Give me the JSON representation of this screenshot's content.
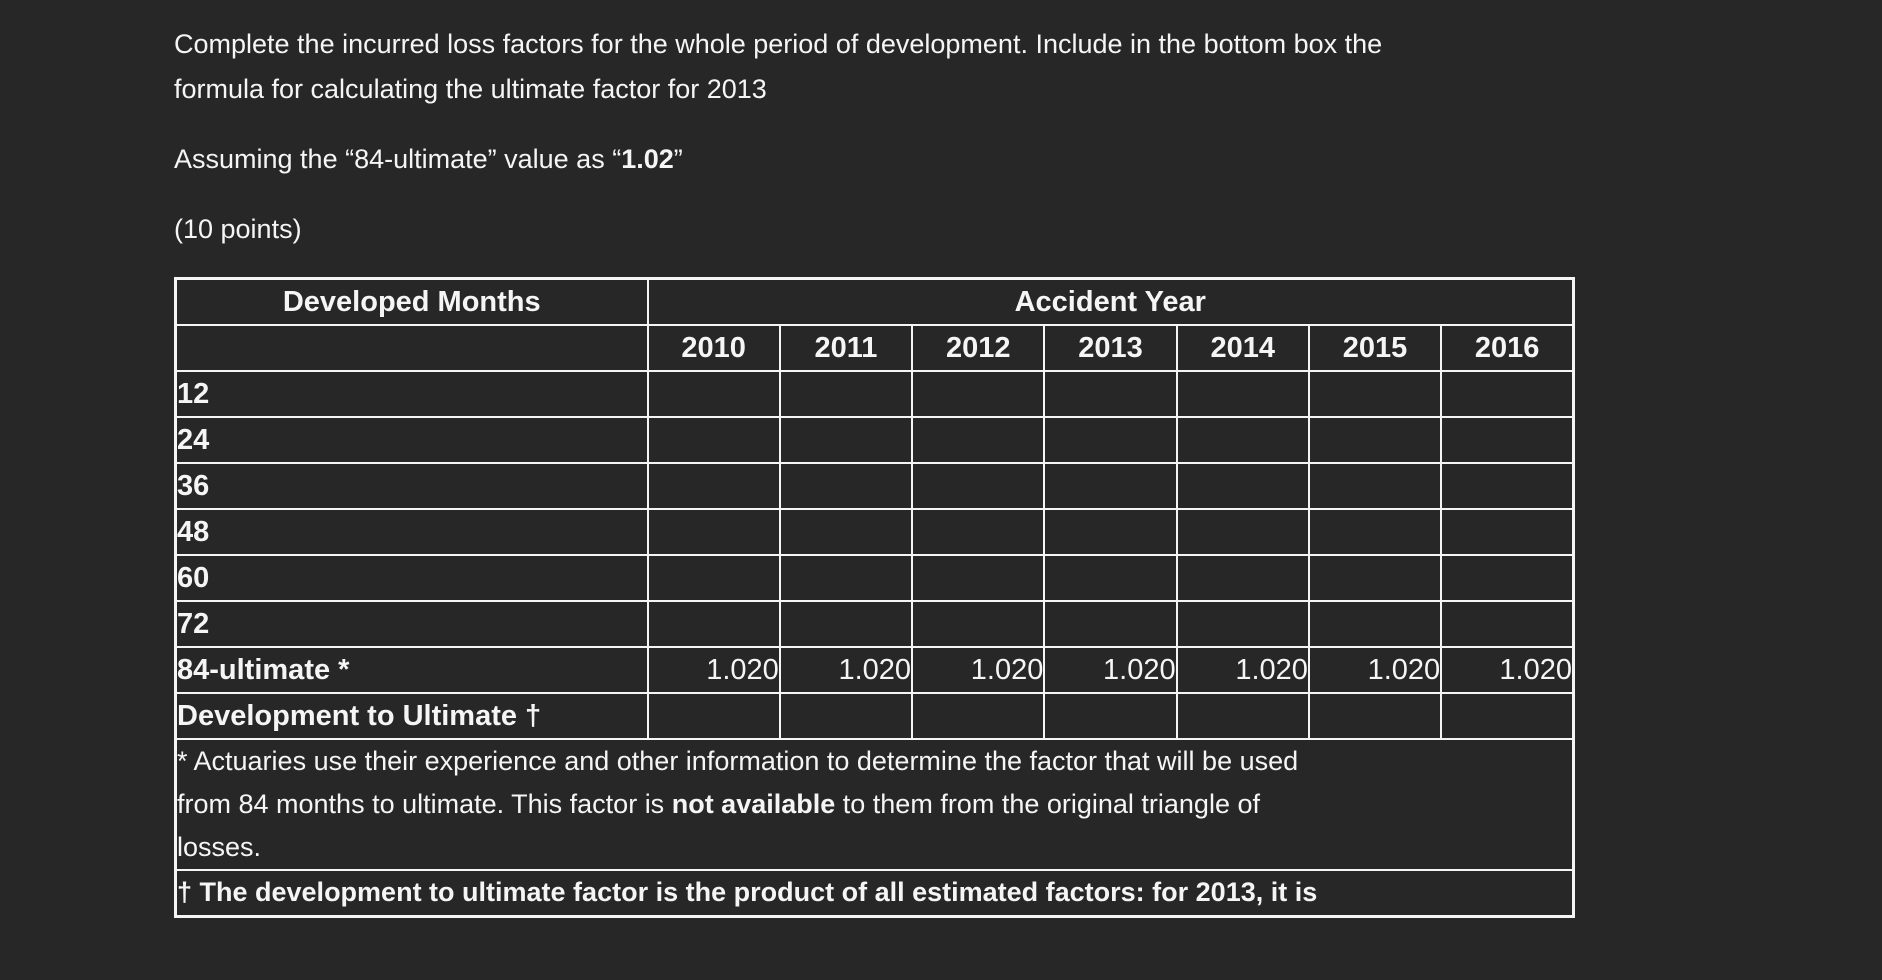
{
  "theme": {
    "background": "#272727",
    "text": "#f5f5f5",
    "table_border": "#f5f5f5"
  },
  "intro": {
    "line1": "Complete the incurred loss factors for the whole period of development. Include in the bottom box the",
    "line2": "formula for calculating the ultimate factor for 2013",
    "assumption_prefix": "Assuming the “84-ultimate” value as “",
    "assumption_value": "1.02",
    "assumption_suffix": "”",
    "points": "(10 points)"
  },
  "table": {
    "developed_months_label": "Developed Months",
    "accident_year_label": "Accident Year",
    "years": [
      "2010",
      "2011",
      "2012",
      "2013",
      "2014",
      "2015",
      "2016"
    ],
    "rows": [
      {
        "label": "12",
        "values": [
          "",
          "",
          "",
          "",
          "",
          "",
          ""
        ]
      },
      {
        "label": "24",
        "values": [
          "",
          "",
          "",
          "",
          "",
          "",
          ""
        ]
      },
      {
        "label": "36",
        "values": [
          "",
          "",
          "",
          "",
          "",
          "",
          ""
        ]
      },
      {
        "label": "48",
        "values": [
          "",
          "",
          "",
          "",
          "",
          "",
          ""
        ]
      },
      {
        "label": "60",
        "values": [
          "",
          "",
          "",
          "",
          "",
          "",
          ""
        ]
      },
      {
        "label": "72",
        "values": [
          "",
          "",
          "",
          "",
          "",
          "",
          ""
        ]
      },
      {
        "label": "84-ultimate *",
        "values": [
          "1.020",
          "1.020",
          "1.020",
          "1.020",
          "1.020",
          "1.020",
          "1.020"
        ]
      },
      {
        "label": "Development to Ultimate †",
        "values": [
          "",
          "",
          "",
          "",
          "",
          "",
          ""
        ]
      }
    ],
    "footnote1": {
      "line1": "* Actuaries use their experience and other information to determine the factor that will be used",
      "line2_prefix": "from 84 months to ultimate. This factor is ",
      "line2_bold": "not available",
      "line2_suffix": " to them from the original triangle of",
      "line3": "losses."
    },
    "footnote2": "† The development to ultimate factor is the product of all estimated factors: for 2013, it is"
  }
}
